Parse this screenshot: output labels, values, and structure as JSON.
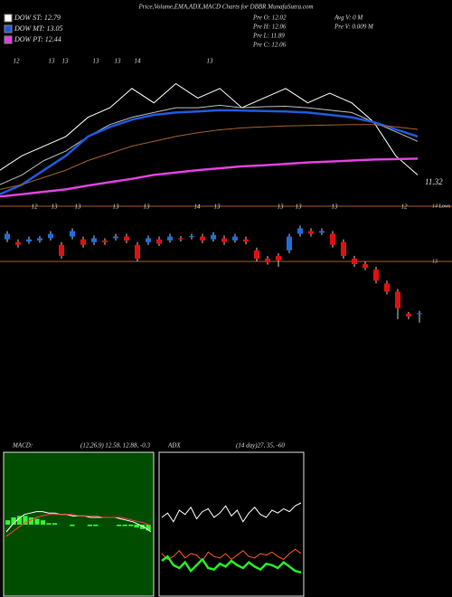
{
  "header": {
    "title": "Price,Volume,EMA,ADX,MACD Charts for DBBR MunafaSutra.com",
    "legend": [
      {
        "label": "DOW ST: 12.79",
        "color": "#ffffff"
      },
      {
        "label": "DOW MT: 13.05",
        "color": "#1e5adc"
      },
      {
        "label": "DOW PT: 12.44",
        "color": "#e040e0"
      }
    ],
    "info": [
      "Pre  O: 12.02",
      "Pre  H: 12.06",
      "Pre  L: 11.89",
      "Pre  C: 12.06",
      "Avg V: 0  M",
      "Pre   V: 0.009 M"
    ]
  },
  "chart_data": [
    {
      "type": "line",
      "top_labels": [
        "12",
        "13",
        "13",
        "13",
        "13",
        "14",
        "13"
      ],
      "ylim": [
        11.0,
        14.2
      ],
      "yticks": [
        11.32
      ],
      "series": [
        {
          "color": "#ffffff",
          "values": [
            11.6,
            11.9,
            12.1,
            12.3,
            12.7,
            12.9,
            13.3,
            13.0,
            13.4,
            13.1,
            13.3,
            12.9,
            13.1,
            13.3,
            13.0,
            13.2,
            13.0,
            12.6,
            11.9,
            11.5
          ]
        },
        {
          "color": "#bbbbbb",
          "values": [
            11.3,
            11.5,
            11.8,
            12.0,
            12.3,
            12.55,
            12.7,
            12.8,
            12.9,
            12.9,
            12.95,
            12.9,
            12.92,
            12.93,
            12.9,
            12.85,
            12.8,
            12.6,
            12.4,
            12.2
          ]
        },
        {
          "color": "#1e5adc",
          "values": [
            11.1,
            11.3,
            11.6,
            11.9,
            12.3,
            12.5,
            12.65,
            12.75,
            12.8,
            12.82,
            12.85,
            12.84,
            12.83,
            12.82,
            12.8,
            12.75,
            12.7,
            12.6,
            12.45,
            12.3
          ]
        },
        {
          "color": "#a0602a",
          "values": [
            11.2,
            11.3,
            11.45,
            11.6,
            11.8,
            11.95,
            12.1,
            12.2,
            12.3,
            12.38,
            12.44,
            12.48,
            12.5,
            12.52,
            12.53,
            12.54,
            12.55,
            12.55,
            12.5,
            12.45
          ]
        },
        {
          "color": "#e040e0",
          "values": [
            11.05,
            11.1,
            11.15,
            11.2,
            11.28,
            11.35,
            11.42,
            11.5,
            11.55,
            11.6,
            11.64,
            11.68,
            11.7,
            11.73,
            11.76,
            11.78,
            11.8,
            11.82,
            11.83,
            11.84
          ]
        }
      ]
    },
    {
      "type": "candlestick",
      "date_labels": [
        "12",
        "13",
        "13",
        "13",
        "13",
        "14",
        "13",
        "13",
        "13",
        "13",
        "12"
      ],
      "ylim": [
        9.7,
        14.05
      ],
      "yticks": [
        {
          "value": 14,
          "label": "14 Lows"
        },
        13
      ],
      "up_color": "#1e6fd9",
      "down_color": "#e01010",
      "open": [
        13.4,
        13.35,
        13.36,
        13.38,
        13.42,
        13.3,
        13.45,
        13.4,
        13.35,
        13.38,
        13.42,
        13.45,
        13.3,
        13.35,
        13.4,
        13.38,
        13.42,
        13.44,
        13.45,
        13.4,
        13.42,
        13.38,
        13.4,
        13.2,
        13.05,
        13.1,
        13.2,
        13.5,
        13.55,
        13.52,
        13.5,
        13.35,
        13.05,
        12.95,
        12.85,
        12.6,
        12.45,
        12.05,
        12.05
      ],
      "high": [
        13.55,
        13.4,
        13.45,
        13.46,
        13.55,
        13.35,
        13.6,
        13.45,
        13.47,
        13.42,
        13.5,
        13.5,
        13.35,
        13.47,
        13.45,
        13.5,
        13.46,
        13.5,
        13.5,
        13.53,
        13.47,
        13.5,
        13.45,
        13.25,
        13.1,
        13.15,
        13.5,
        13.65,
        13.6,
        13.6,
        13.55,
        13.4,
        13.1,
        13.0,
        12.9,
        12.65,
        12.5,
        12.08,
        12.1
      ],
      "low": [
        13.35,
        13.25,
        13.32,
        13.34,
        13.38,
        13.05,
        13.4,
        13.25,
        13.3,
        13.3,
        13.38,
        13.33,
        13.0,
        13.3,
        13.28,
        13.34,
        13.36,
        13.4,
        13.33,
        13.36,
        13.3,
        13.34,
        13.31,
        13.0,
        12.94,
        12.9,
        13.15,
        13.45,
        13.45,
        13.48,
        13.25,
        13.05,
        12.9,
        12.84,
        12.6,
        12.4,
        11.95,
        11.95,
        11.89
      ],
      "close": [
        13.5,
        13.3,
        13.4,
        13.42,
        13.5,
        13.1,
        13.55,
        13.3,
        13.42,
        13.35,
        13.45,
        13.38,
        13.05,
        13.42,
        13.32,
        13.45,
        13.4,
        13.46,
        13.38,
        13.48,
        13.35,
        13.45,
        13.36,
        13.05,
        12.98,
        13.02,
        13.45,
        13.6,
        13.5,
        13.55,
        13.3,
        13.1,
        12.95,
        12.88,
        12.65,
        12.45,
        12.15,
        12.0,
        12.06
      ]
    },
    {
      "type": "macd",
      "title": "MACD:",
      "subtitle": "(12,26,9) 12.58, 12.88, -0.3",
      "background": "#004d00",
      "ylim": [
        -0.5,
        0.5
      ],
      "series": [
        {
          "color": "#ffffff",
          "values": [
            -0.05,
            0.0,
            0.04,
            0.07,
            0.08,
            0.09,
            0.09,
            0.08,
            0.08,
            0.07,
            0.07,
            0.06,
            0.06,
            0.06,
            0.05,
            0.05,
            0.05,
            0.05,
            0.05,
            0.04,
            0.03,
            0.02,
            0.0,
            -0.02,
            -0.05
          ]
        },
        {
          "color": "#ff4040",
          "values": [
            -0.08,
            -0.05,
            -0.02,
            0.01,
            0.03,
            0.05,
            0.06,
            0.07,
            0.07,
            0.07,
            0.07,
            0.07,
            0.06,
            0.06,
            0.06,
            0.06,
            0.05,
            0.05,
            0.05,
            0.05,
            0.04,
            0.03,
            0.02,
            0.01,
            -0.01
          ]
        }
      ],
      "histogram": {
        "color": "#33ff33",
        "values": [
          0.03,
          0.05,
          0.06,
          0.06,
          0.05,
          0.04,
          0.03,
          0.01,
          0.01,
          0.0,
          0.0,
          -0.01,
          0.0,
          0.0,
          -0.01,
          -0.01,
          0.0,
          0.0,
          0.0,
          -0.01,
          -0.01,
          -0.01,
          -0.02,
          -0.03,
          -0.04
        ]
      }
    },
    {
      "type": "adx",
      "title": "ADX",
      "subtitle": "(14 day)27, 35, -60",
      "background": "#000000",
      "ylim": [
        0,
        100
      ],
      "series": [
        {
          "color": "#ffffff",
          "values": [
            55,
            58,
            52,
            60,
            57,
            62,
            54,
            59,
            61,
            55,
            58,
            63,
            56,
            60,
            52,
            58,
            62,
            57,
            55,
            60,
            58,
            61,
            59,
            63,
            65
          ]
        },
        {
          "color": "#ff5a1e",
          "values": [
            30,
            26,
            28,
            32,
            27,
            30,
            29,
            25,
            31,
            28,
            27,
            30,
            26,
            29,
            32,
            28,
            27,
            30,
            29,
            31,
            28,
            26,
            30,
            33,
            30
          ]
        },
        {
          "color": "#22ee22",
          "values": [
            25,
            28,
            22,
            20,
            24,
            18,
            22,
            26,
            20,
            19,
            23,
            21,
            25,
            22,
            20,
            24,
            21,
            19,
            23,
            22,
            20,
            24,
            21,
            18,
            17
          ]
        }
      ]
    }
  ]
}
